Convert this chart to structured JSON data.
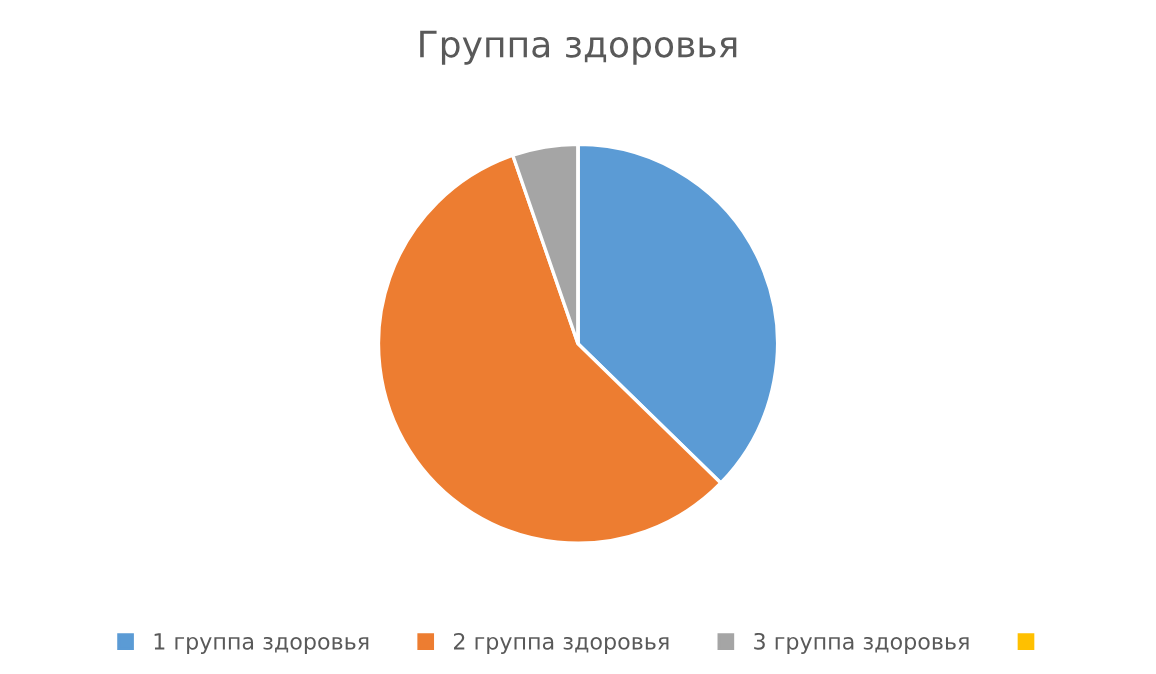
{
  "chart_data": {
    "type": "pie",
    "title": "Группа здоровья",
    "categories": [
      "1 группа здоровья",
      "2 группа здоровья",
      "3 группа здоровья",
      null
    ],
    "values": [
      37.3,
      57.4,
      5.3,
      0
    ],
    "colors": [
      "#5b9bd5",
      "#ed7d31",
      "#a5a5a5",
      "#ffc000"
    ],
    "legend": "bottom"
  }
}
